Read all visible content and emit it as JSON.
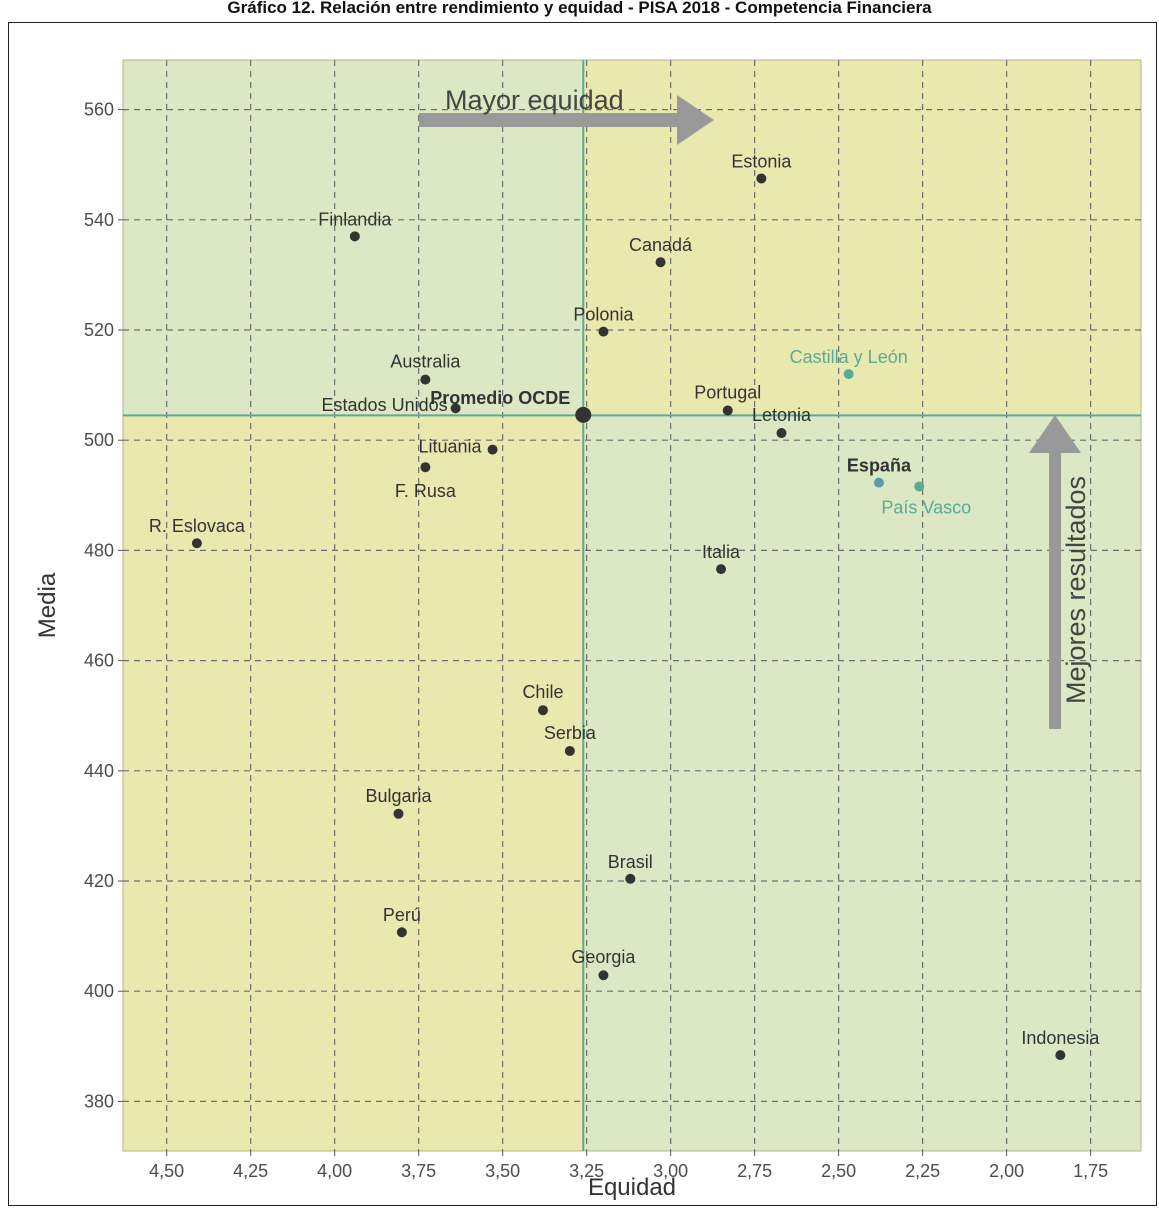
{
  "page_title": "Gráfico 12. Relación entre rendimiento y equidad - PISA 2018 - Competencia Financiera",
  "colors": {
    "green_quadrant": "#dce8c4",
    "yellow_quadrant": "#e9e8ae",
    "grid": "#6e6e6e",
    "reference_line": "#5aab95",
    "point": "#333333",
    "teal_point": "#5aab95",
    "spain_point": "#5b9bb5",
    "arrow": "#999999"
  },
  "chart_data": {
    "type": "scatter",
    "xlabel": "Equidad",
    "ylabel": "Media",
    "x_reversed": true,
    "xlim": [
      4.63,
      1.6
    ],
    "ylim": [
      371,
      569
    ],
    "x_ticks": [
      4.5,
      4.25,
      4.0,
      3.75,
      3.5,
      3.25,
      3.0,
      2.75,
      2.5,
      2.25,
      2.0,
      1.75
    ],
    "x_tick_labels": [
      "4,50",
      "4,25",
      "4,00",
      "3,75",
      "3,50",
      "3,25",
      "3,00",
      "2,75",
      "2,50",
      "2,25",
      "2,00",
      "1,75"
    ],
    "y_ticks": [
      380,
      400,
      420,
      440,
      460,
      480,
      500,
      520,
      540,
      560
    ],
    "y_tick_labels": [
      "380",
      "400",
      "420",
      "440",
      "460",
      "480",
      "500",
      "520",
      "540",
      "560"
    ],
    "grid": true,
    "reference_lines": {
      "x": 3.26,
      "y": 504.5
    },
    "points": [
      {
        "label": "Estonia",
        "x": 2.73,
        "y": 547.5,
        "style": "normal"
      },
      {
        "label": "Finlandia",
        "x": 3.94,
        "y": 537,
        "style": "normal"
      },
      {
        "label": "Canadá",
        "x": 3.03,
        "y": 532.3,
        "style": "normal"
      },
      {
        "label": "Polonia",
        "x": 3.2,
        "y": 519.7,
        "style": "normal"
      },
      {
        "label": "Australia",
        "x": 3.73,
        "y": 511,
        "style": "normal"
      },
      {
        "label": "Castilla y León",
        "x": 2.47,
        "y": 512,
        "style": "teal"
      },
      {
        "label": "Estados Unidos",
        "x": 3.64,
        "y": 505.8,
        "style": "normal"
      },
      {
        "label": "Promedio OCDE",
        "x": 3.26,
        "y": 504.6,
        "style": "bold"
      },
      {
        "label": "Portugal",
        "x": 2.83,
        "y": 505.4,
        "style": "normal"
      },
      {
        "label": "Letonia",
        "x": 2.67,
        "y": 501.3,
        "style": "normal"
      },
      {
        "label": "Lituania",
        "x": 3.53,
        "y": 498.3,
        "style": "normal"
      },
      {
        "label": "F. Rusa",
        "x": 3.73,
        "y": 495.1,
        "style": "normal"
      },
      {
        "label": "España",
        "x": 2.38,
        "y": 492.3,
        "style": "spain"
      },
      {
        "label": "País Vasco",
        "x": 2.26,
        "y": 491.6,
        "style": "teal"
      },
      {
        "label": "R. Eslovaca",
        "x": 4.41,
        "y": 481.3,
        "style": "normal"
      },
      {
        "label": "Italia",
        "x": 2.85,
        "y": 476.6,
        "style": "normal"
      },
      {
        "label": "Chile",
        "x": 3.38,
        "y": 451,
        "style": "normal"
      },
      {
        "label": "Serbia",
        "x": 3.3,
        "y": 443.6,
        "style": "normal"
      },
      {
        "label": "Bulgaria",
        "x": 3.81,
        "y": 432.2,
        "style": "normal"
      },
      {
        "label": "Brasil",
        "x": 3.12,
        "y": 420.4,
        "style": "normal"
      },
      {
        "label": "Perú",
        "x": 3.8,
        "y": 410.7,
        "style": "normal"
      },
      {
        "label": "Georgia",
        "x": 3.2,
        "y": 402.9,
        "style": "normal"
      },
      {
        "label": "Indonesia",
        "x": 1.84,
        "y": 388.4,
        "style": "normal"
      }
    ],
    "annotations": [
      {
        "text": "Mayor equidad",
        "direction": "right"
      },
      {
        "text": "Mejores resultados",
        "direction": "up"
      }
    ]
  }
}
